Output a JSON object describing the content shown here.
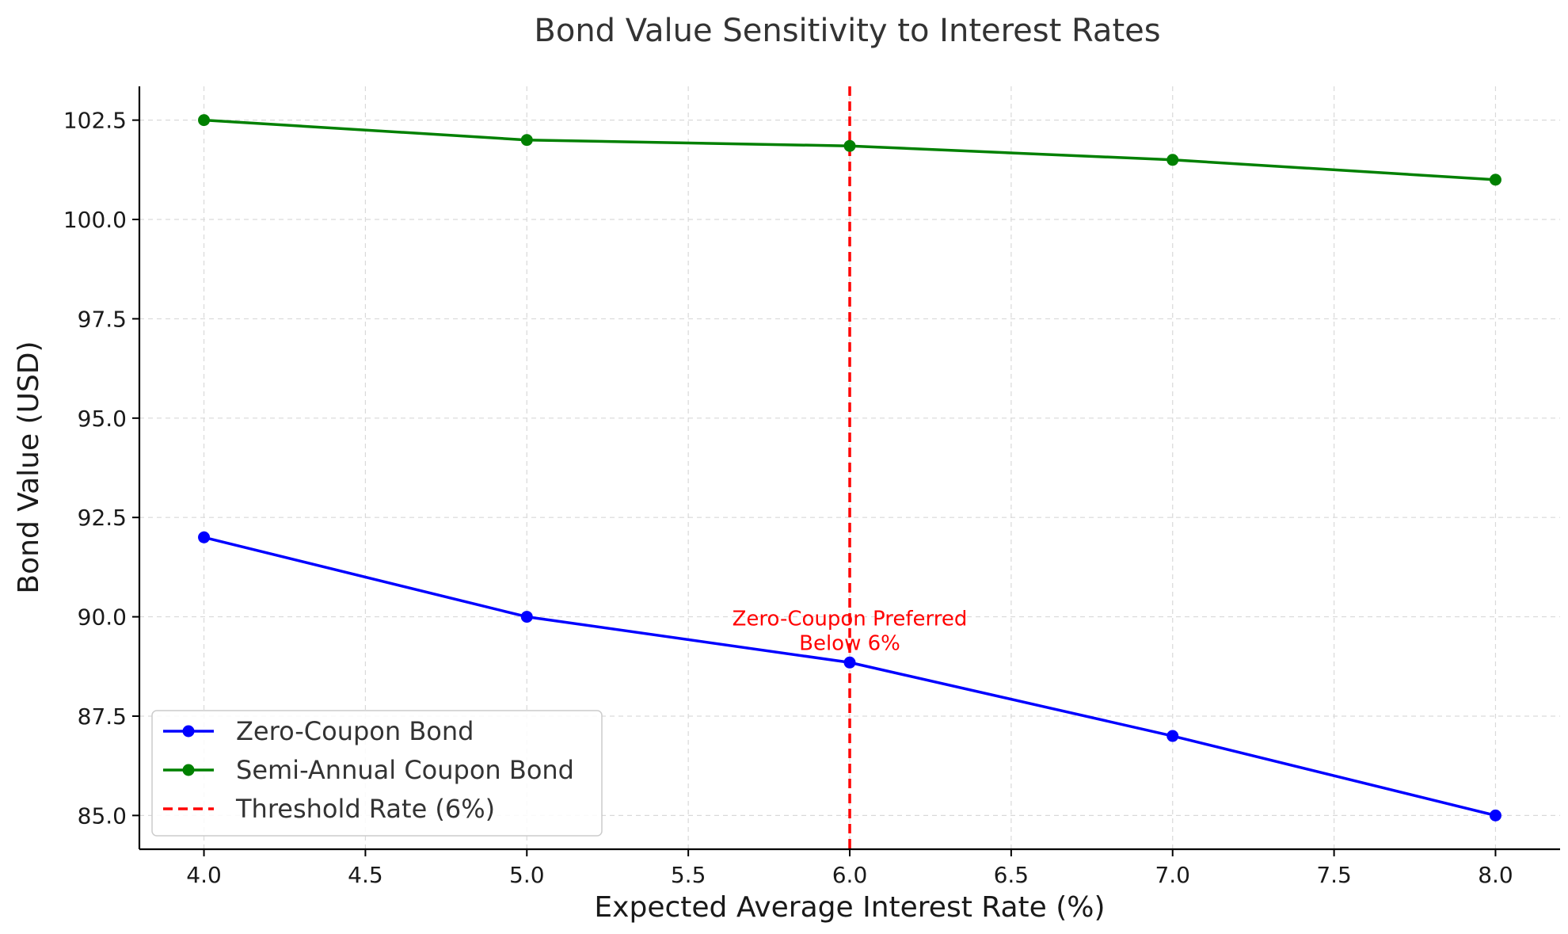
{
  "chart_data": {
    "type": "line",
    "title": "Bond Value Sensitivity to Interest Rates",
    "xlabel": "Expected Average Interest Rate (%)",
    "ylabel": "Bond Value (USD)",
    "xlim": [
      3.8,
      8.2
    ],
    "ylim": [
      84.15,
      103.35
    ],
    "xticks": [
      4.0,
      4.5,
      5.0,
      5.5,
      6.0,
      6.5,
      7.0,
      7.5,
      8.0
    ],
    "xtick_labels": [
      "4.0",
      "4.5",
      "5.0",
      "5.5",
      "6.0",
      "6.5",
      "7.0",
      "7.5",
      "8.0"
    ],
    "yticks": [
      85.0,
      87.5,
      90.0,
      92.5,
      95.0,
      97.5,
      100.0,
      102.5
    ],
    "ytick_labels": [
      "85.0",
      "87.5",
      "90.0",
      "92.5",
      "95.0",
      "97.5",
      "100.0",
      "102.5"
    ],
    "grid": true,
    "legend_position": "bottom-left",
    "series": [
      {
        "name": "Zero-Coupon Bond",
        "color": "#0000ff",
        "x": [
          4.0,
          5.0,
          6.0,
          7.0,
          8.0
        ],
        "y": [
          92.0,
          90.0,
          88.85,
          87.0,
          85.0
        ]
      },
      {
        "name": "Semi-Annual Coupon Bond",
        "color": "#008000",
        "x": [
          4.0,
          5.0,
          6.0,
          7.0,
          8.0
        ],
        "y": [
          102.5,
          102.0,
          101.85,
          101.5,
          101.0
        ]
      }
    ],
    "threshold": {
      "name": "Threshold Rate (6%)",
      "x": 6.0,
      "color": "#ff0000",
      "style": "dashed"
    },
    "annotation": {
      "lines": [
        "Zero-Coupon Preferred",
        "Below 6%"
      ],
      "x": 6.0,
      "y": 89.0,
      "color": "#ff0000"
    }
  }
}
